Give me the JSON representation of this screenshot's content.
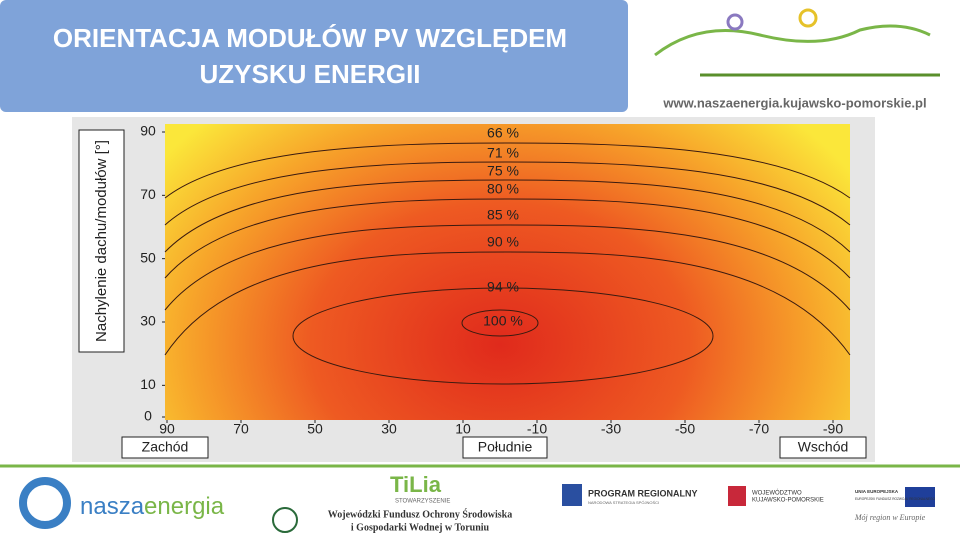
{
  "header": {
    "title_lines": [
      "ORIENTACJA MODUŁÓW PV WZGLĘDEM",
      "UZYSKU ENERGII"
    ],
    "url": "www.naszaenergia.kujawsko-pomorskie.pl"
  },
  "chart_data": {
    "type": "contour",
    "y_label": "Nachylenie dachu/modułów [°]",
    "xlim": [
      90,
      -90
    ],
    "xticks": [
      90,
      70,
      50,
      30,
      10,
      -10,
      -30,
      -50,
      -70,
      -90
    ],
    "ylim": [
      0,
      90
    ],
    "yticks": [
      0,
      10,
      30,
      50,
      70,
      90
    ],
    "contours": [
      {
        "value": 66,
        "label": "66 %"
      },
      {
        "value": 71,
        "label": "71 %"
      },
      {
        "value": 75,
        "label": "75 %"
      },
      {
        "value": 80,
        "label": "80 %"
      },
      {
        "value": 85,
        "label": "85 %"
      },
      {
        "value": 90,
        "label": "90 %"
      },
      {
        "value": 94,
        "label": "94 %"
      },
      {
        "value": 100,
        "label": "100 %"
      }
    ],
    "direction_labels": [
      "Zachód",
      "Południe",
      "Wschód"
    ]
  },
  "footer": {
    "naszaenergia": [
      "nasza",
      "energia"
    ],
    "tilia": "TiLia",
    "tilia_sub": "STOWARZYSZENIE",
    "wfos": [
      "Wojewódzki Fundusz Ochrony Środowiska",
      "i Gospodarki Wodnej w Toruniu"
    ],
    "program": "PROGRAM REGIONALNY",
    "program_sub": "NARODOWA STRATEGIA SPÓJNOŚCI",
    "region": [
      "WOJEWÓDZTWO",
      "KUJAWSKO-POMORSKIE"
    ],
    "eu": [
      "UNIA EUROPEJSKA",
      "EUROPEJSKI FUNDUSZ ROZWOJU REGIONALNEGO"
    ],
    "motto": "Mój region w Europie"
  }
}
